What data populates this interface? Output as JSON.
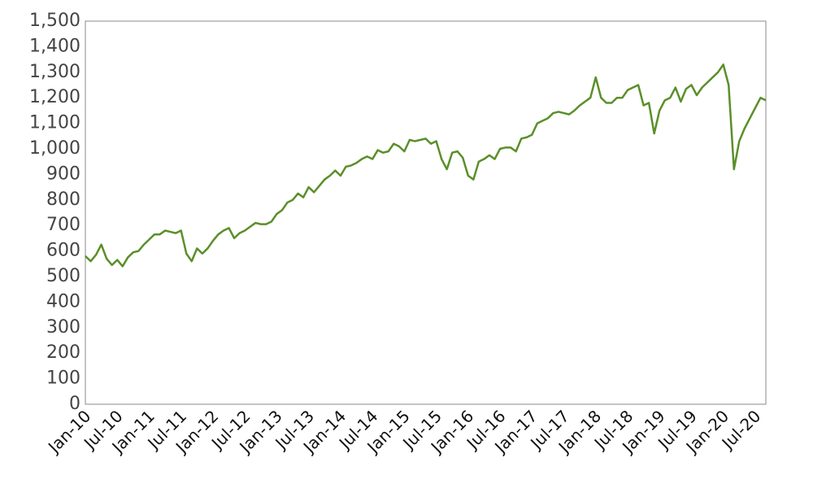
{
  "chart_data": {
    "type": "line",
    "color": "#5a8f29",
    "x": [
      "Jan-10",
      "Feb-10",
      "Mar-10",
      "Apr-10",
      "May-10",
      "Jun-10",
      "Jul-10",
      "Aug-10",
      "Sep-10",
      "Oct-10",
      "Nov-10",
      "Dec-10",
      "Jan-11",
      "Feb-11",
      "Mar-11",
      "Apr-11",
      "May-11",
      "Jun-11",
      "Jul-11",
      "Aug-11",
      "Sep-11",
      "Oct-11",
      "Nov-11",
      "Dec-11",
      "Jan-12",
      "Feb-12",
      "Mar-12",
      "Apr-12",
      "May-12",
      "Jun-12",
      "Jul-12",
      "Aug-12",
      "Sep-12",
      "Oct-12",
      "Nov-12",
      "Dec-12",
      "Jan-13",
      "Feb-13",
      "Mar-13",
      "Apr-13",
      "May-13",
      "Jun-13",
      "Jul-13",
      "Aug-13",
      "Sep-13",
      "Oct-13",
      "Nov-13",
      "Dec-13",
      "Jan-14",
      "Feb-14",
      "Mar-14",
      "Apr-14",
      "May-14",
      "Jun-14",
      "Jul-14",
      "Aug-14",
      "Sep-14",
      "Oct-14",
      "Nov-14",
      "Dec-14",
      "Jan-15",
      "Feb-15",
      "Mar-15",
      "Apr-15",
      "May-15",
      "Jun-15",
      "Jul-15",
      "Aug-15",
      "Sep-15",
      "Oct-15",
      "Nov-15",
      "Dec-15",
      "Jan-16",
      "Feb-16",
      "Mar-16",
      "Apr-16",
      "May-16",
      "Jun-16",
      "Jul-16",
      "Aug-16",
      "Sep-16",
      "Oct-16",
      "Nov-16",
      "Dec-16",
      "Jan-17",
      "Feb-17",
      "Mar-17",
      "Apr-17",
      "May-17",
      "Jun-17",
      "Jul-17",
      "Aug-17",
      "Sep-17",
      "Oct-17",
      "Nov-17",
      "Dec-17",
      "Jan-18",
      "Feb-18",
      "Mar-18",
      "Apr-18",
      "May-18",
      "Jun-18",
      "Jul-18",
      "Aug-18",
      "Sep-18",
      "Oct-18",
      "Nov-18",
      "Dec-18",
      "Jan-19",
      "Feb-19",
      "Mar-19",
      "Apr-19",
      "May-19",
      "Jun-19",
      "Jul-19",
      "Aug-19",
      "Sep-19",
      "Oct-19",
      "Nov-19",
      "Dec-19",
      "Jan-20",
      "Feb-20",
      "Mar-20",
      "Apr-20",
      "May-20",
      "Jun-20",
      "Jul-20",
      "Aug-20",
      "Sep-20"
    ],
    "values": [
      580,
      560,
      585,
      625,
      570,
      545,
      565,
      540,
      575,
      595,
      600,
      625,
      645,
      665,
      665,
      680,
      675,
      670,
      680,
      590,
      560,
      610,
      590,
      610,
      640,
      665,
      680,
      690,
      650,
      670,
      680,
      695,
      710,
      705,
      705,
      715,
      745,
      760,
      790,
      800,
      825,
      810,
      850,
      830,
      855,
      880,
      895,
      915,
      895,
      930,
      935,
      945,
      960,
      970,
      960,
      995,
      985,
      990,
      1020,
      1010,
      990,
      1035,
      1030,
      1035,
      1040,
      1020,
      1030,
      960,
      920,
      985,
      990,
      965,
      895,
      880,
      950,
      960,
      975,
      960,
      1000,
      1005,
      1005,
      990,
      1040,
      1045,
      1055,
      1100,
      1110,
      1120,
      1140,
      1145,
      1140,
      1135,
      1150,
      1170,
      1185,
      1200,
      1280,
      1200,
      1180,
      1180,
      1200,
      1200,
      1230,
      1240,
      1250,
      1170,
      1180,
      1060,
      1150,
      1190,
      1200,
      1240,
      1185,
      1235,
      1250,
      1210,
      1240,
      1260,
      1280,
      1300,
      1330,
      1250,
      920,
      1030,
      1080,
      1120,
      1160,
      1200,
      1190
    ],
    "xticks": [
      "Jan-10",
      "Jul-10",
      "Jan-11",
      "Jul-11",
      "Jan-12",
      "Jul-12",
      "Jan-13",
      "Jul-13",
      "Jan-14",
      "Jul-14",
      "Jan-15",
      "Jul-15",
      "Jan-16",
      "Jul-16",
      "Jan-17",
      "Jul-17",
      "Jan-18",
      "Jul-18",
      "Jan-19",
      "Jul-19",
      "Jan-20",
      "Jul-20"
    ],
    "ylim": [
      0,
      1500
    ],
    "yticks": [
      0,
      100,
      200,
      300,
      400,
      500,
      600,
      700,
      800,
      900,
      {
        "value": 1000,
        "label": "1,000"
      },
      {
        "value": 1100,
        "label": "1,100"
      },
      {
        "value": 1200,
        "label": "1,200"
      },
      {
        "value": 1300,
        "label": "1,300"
      },
      {
        "value": 1400,
        "label": "1,400"
      },
      {
        "value": 1500,
        "label": "1,500"
      }
    ],
    "grid": false
  }
}
